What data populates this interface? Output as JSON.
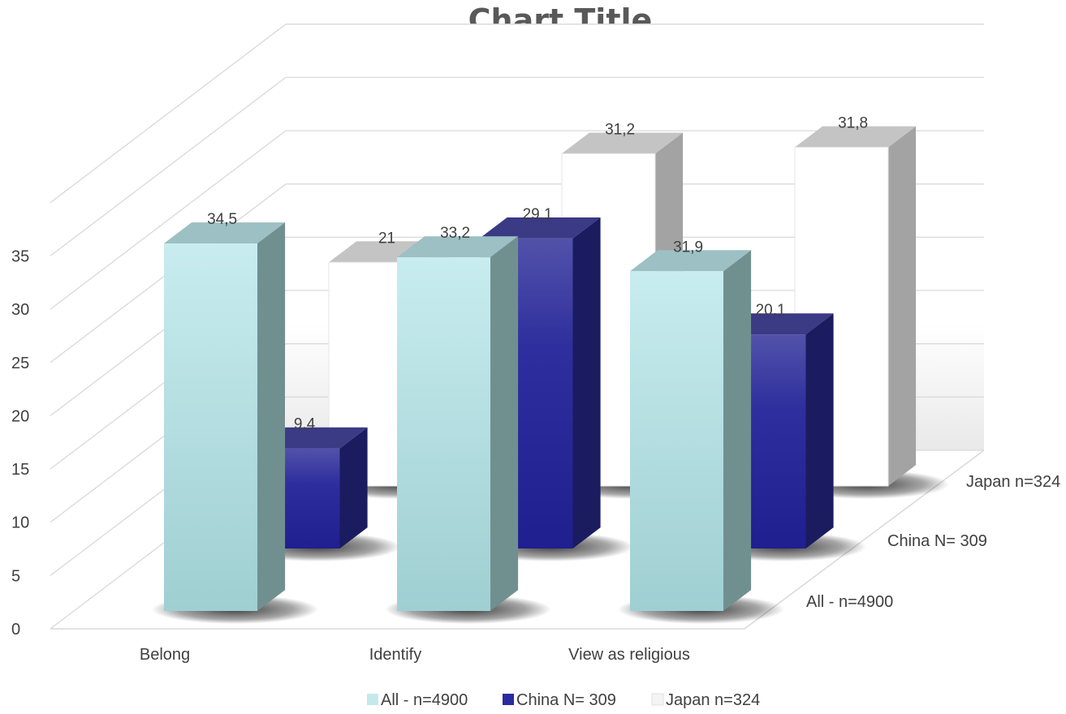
{
  "chart_data": {
    "type": "bar",
    "title": "Chart Title",
    "categories": [
      "Belong",
      "Identify",
      "View as religious"
    ],
    "series": [
      {
        "name": "All - n=4900",
        "values": [
          34.5,
          33.2,
          31.9
        ],
        "labels": [
          "34,5",
          "33,2",
          "31,9"
        ],
        "color": "#c4e9ec"
      },
      {
        "name": "China N= 309",
        "values": [
          9.4,
          29.1,
          20.1
        ],
        "labels": [
          "9,4",
          "29,1",
          "20,1"
        ],
        "color": "#2b2ba0"
      },
      {
        "name": "Japan n=324",
        "values": [
          21,
          31.2,
          31.8
        ],
        "labels": [
          "21",
          "31,2",
          "31,8"
        ],
        "color": "#ffffff"
      }
    ],
    "yticks": [
      "0",
      "5",
      "10",
      "15",
      "20",
      "25",
      "30",
      "35"
    ],
    "ylim": [
      0,
      35
    ],
    "legend_position": "bottom",
    "grid": true
  }
}
